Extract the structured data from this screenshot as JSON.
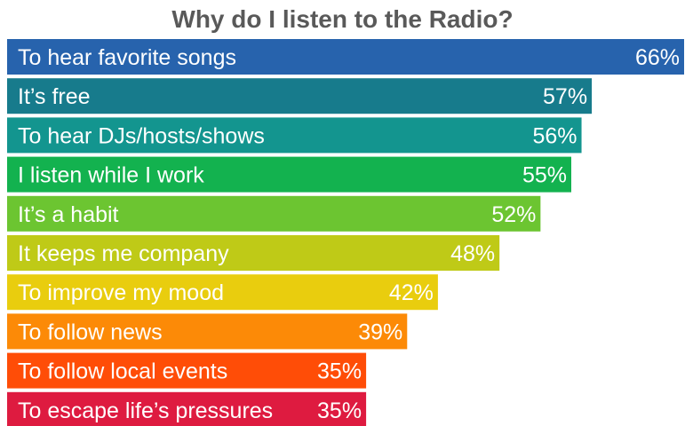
{
  "chart_data": {
    "type": "bar",
    "orientation": "horizontal",
    "title": "Why do I listen to the Radio?",
    "xlabel": "",
    "ylabel": "",
    "xlim": [
      0,
      66
    ],
    "grid": false,
    "legend": "none",
    "value_suffix": "%",
    "categories": [
      "To hear favorite songs",
      "It’s free",
      "To hear DJs/hosts/shows",
      "I listen while I work",
      "It’s a habit",
      "It keeps me company",
      "To improve my mood",
      "To follow news",
      "To follow local events",
      "To escape life’s pressures"
    ],
    "values": [
      66,
      57,
      56,
      55,
      52,
      48,
      42,
      39,
      35,
      35
    ],
    "value_labels": [
      "66%",
      "57%",
      "56%",
      "55%",
      "52%",
      "48%",
      "42%",
      "39%",
      "35%",
      "35%"
    ],
    "colors": [
      "#2763ad",
      "#177b8c",
      "#13958f",
      "#13b24f",
      "#6cc531",
      "#bfca17",
      "#e9cd0e",
      "#fc8a07",
      "#ff4d07",
      "#de1b40"
    ],
    "label_colors": [
      "#ffffff",
      "#ffffff",
      "#ffffff",
      "#ffffff",
      "#ffffff",
      "#ffffff",
      "#b59c00",
      "#ffffff",
      "#ffffff",
      "#ffffff"
    ]
  }
}
